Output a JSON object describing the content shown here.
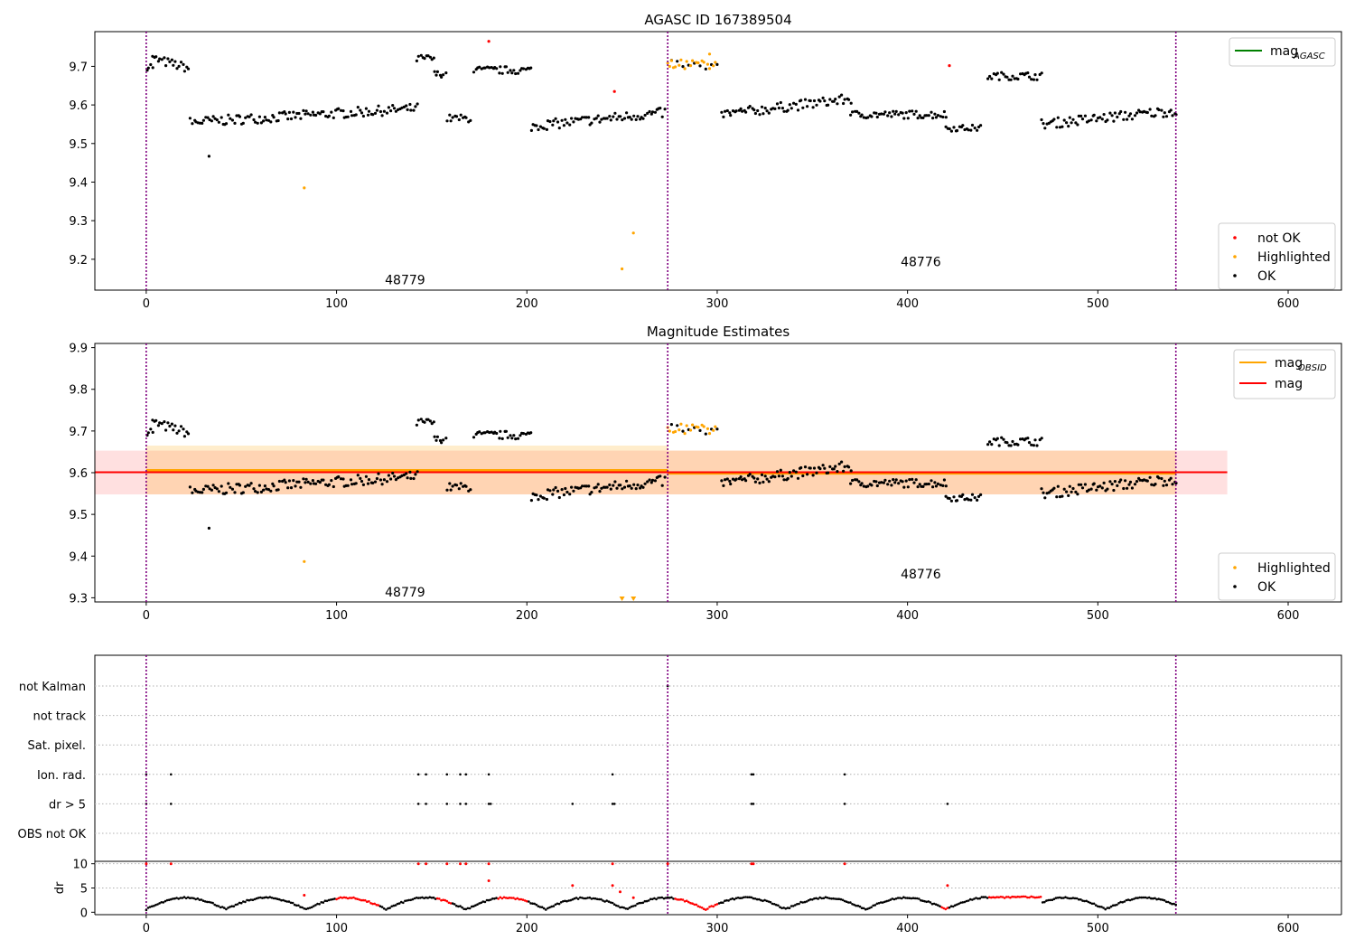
{
  "chart_data": [
    {
      "type": "scatter",
      "title": "AGASC ID 167389504",
      "xlim": [
        -27,
        628
      ],
      "ylim": [
        9.12,
        9.79
      ],
      "xticks": [
        0,
        100,
        200,
        300,
        400,
        500,
        600
      ],
      "yticks": [
        9.2,
        9.3,
        9.4,
        9.5,
        9.6,
        9.7
      ],
      "ytick_labels": [
        "9.2",
        "9.3",
        "9.4",
        "9.5",
        "9.6",
        "9.7"
      ],
      "obs_boundaries": [
        0,
        274,
        541
      ],
      "obs_labels": [
        {
          "text": "48779",
          "x": 136,
          "y": 9.147
        },
        {
          "text": "48776",
          "x": 407,
          "y": 9.194
        }
      ],
      "legend_lines": [
        {
          "name": "mag",
          "sub": "AGASC",
          "color": "#008000"
        }
      ],
      "legend_points": [
        {
          "name": "not OK",
          "color": "#ff0000"
        },
        {
          "name": "Highlighted",
          "color": "#ffa500"
        },
        {
          "name": "OK",
          "color": "#000000"
        }
      ],
      "segments": [
        {
          "x0": 0,
          "x1": 3,
          "base": 9.7,
          "slope": 0,
          "noise": 0.01
        },
        {
          "x0": 3,
          "x1": 22,
          "base": 9.72,
          "slope": -0.0013,
          "noise": 0.012
        },
        {
          "x0": 23,
          "x1": 142,
          "base": 9.555,
          "slope": 0.0003,
          "noise": 0.013
        },
        {
          "x0": 142,
          "x1": 151,
          "base": 9.72,
          "slope": 0,
          "noise": 0.01
        },
        {
          "x0": 151,
          "x1": 157,
          "base": 9.68,
          "slope": 0,
          "noise": 0.008
        },
        {
          "x0": 158,
          "x1": 170,
          "base": 9.565,
          "slope": 0,
          "noise": 0.01
        },
        {
          "x0": 172,
          "x1": 202,
          "base": 9.69,
          "slope": 0,
          "noise": 0.01
        },
        {
          "x0": 202,
          "x1": 272,
          "base": 9.545,
          "slope": 0.0005,
          "noise": 0.013
        },
        {
          "x0": 302,
          "x1": 370,
          "base": 9.575,
          "slope": 0.0006,
          "noise": 0.013
        },
        {
          "x0": 370,
          "x1": 420,
          "base": 9.575,
          "slope": 0,
          "noise": 0.01
        },
        {
          "x0": 420,
          "x1": 438,
          "base": 9.54,
          "slope": 0,
          "noise": 0.008
        },
        {
          "x0": 442,
          "x1": 470,
          "base": 9.675,
          "slope": 0,
          "noise": 0.01
        },
        {
          "x0": 470,
          "x1": 541,
          "base": 9.55,
          "slope": 0.0005,
          "noise": 0.013
        }
      ],
      "ok_extra": [
        [
          33,
          9.467
        ]
      ],
      "orange_cluster": {
        "x0": 274,
        "x1": 300,
        "base": 9.705,
        "noise": 0.012
      },
      "highlighted": [
        [
          83,
          9.385
        ],
        [
          250,
          9.175
        ],
        [
          256,
          9.268
        ],
        [
          276,
          9.715
        ],
        [
          296,
          9.732
        ]
      ],
      "not_ok": [
        [
          180,
          9.765
        ],
        [
          246,
          9.635
        ],
        [
          422,
          9.702
        ]
      ]
    },
    {
      "type": "scatter",
      "title": "Magnitude Estimates",
      "xlim": [
        -27,
        628
      ],
      "ylim": [
        9.29,
        9.91
      ],
      "xticks": [
        0,
        100,
        200,
        300,
        400,
        500,
        600
      ],
      "yticks": [
        9.3,
        9.4,
        9.5,
        9.6,
        9.7,
        9.8,
        9.9
      ],
      "ytick_labels": [
        "9.3",
        "9.4",
        "9.5",
        "9.6",
        "9.7",
        "9.8",
        "9.9"
      ],
      "obs_boundaries": [
        0,
        274,
        541
      ],
      "obs_labels": [
        {
          "text": "48779",
          "x": 136,
          "y": 9.314
        },
        {
          "text": "48776",
          "x": 407,
          "y": 9.357
        }
      ],
      "mag": 9.601,
      "mag_band": [
        -27,
        568,
        9.548,
        9.653
      ],
      "obsid_mags": [
        {
          "x0": 0,
          "x1": 274,
          "mag": 9.606,
          "band": [
            9.548,
            9.665
          ]
        },
        {
          "x0": 274,
          "x1": 541,
          "mag": 9.598,
          "band": [
            9.548,
            9.653
          ]
        }
      ],
      "legend_lines": [
        {
          "name": "mag",
          "sub": "OBSID",
          "color": "#ffa500"
        },
        {
          "name": "mag",
          "sub": "",
          "color": "#ff0000"
        }
      ],
      "legend_points": [
        {
          "name": "Highlighted",
          "color": "#ffa500"
        },
        {
          "name": "OK",
          "color": "#000000"
        }
      ],
      "highlighted": [
        [
          83,
          9.387
        ]
      ],
      "clipped_low": [
        250,
        256
      ]
    },
    {
      "type": "scatter",
      "flag_labels": [
        "not Kalman",
        "not track",
        "Sat. pixel.",
        "Ion. rad.",
        "dr > 5",
        "OBS not OK"
      ],
      "flags": {
        "not Kalman": [
          274
        ],
        "Ion. rad.": [
          0,
          13,
          143,
          147,
          158,
          165,
          168,
          180,
          245,
          318,
          319,
          367
        ],
        "dr > 5": [
          0,
          13,
          143,
          147,
          158,
          165,
          168,
          180,
          181,
          224,
          245,
          246,
          318,
          319,
          367,
          421
        ]
      },
      "ylabel": "dr",
      "ylim": [
        -0.5,
        10.5
      ],
      "yticks": [
        0,
        5,
        10
      ],
      "xticks": [
        0,
        100,
        200,
        300,
        400,
        500,
        600
      ],
      "red_high": [
        [
          0,
          10
        ],
        [
          13,
          10
        ],
        [
          143,
          10
        ],
        [
          147,
          10
        ],
        [
          158,
          10
        ],
        [
          165,
          10
        ],
        [
          168,
          10
        ],
        [
          180,
          10
        ],
        [
          245,
          10
        ],
        [
          274,
          10
        ],
        [
          318,
          10
        ],
        [
          319,
          10
        ],
        [
          367,
          10
        ],
        [
          83,
          3.5
        ],
        [
          180,
          6.5
        ],
        [
          224,
          5.5
        ],
        [
          245,
          5.5
        ],
        [
          249,
          4.2
        ],
        [
          256,
          3
        ],
        [
          421,
          5.5
        ]
      ],
      "red_ranges": [
        [
          100,
          122
        ],
        [
          153,
          160
        ],
        [
          185,
          200
        ],
        [
          278,
          300
        ],
        [
          418,
          421
        ],
        [
          443,
          470
        ]
      ]
    }
  ]
}
